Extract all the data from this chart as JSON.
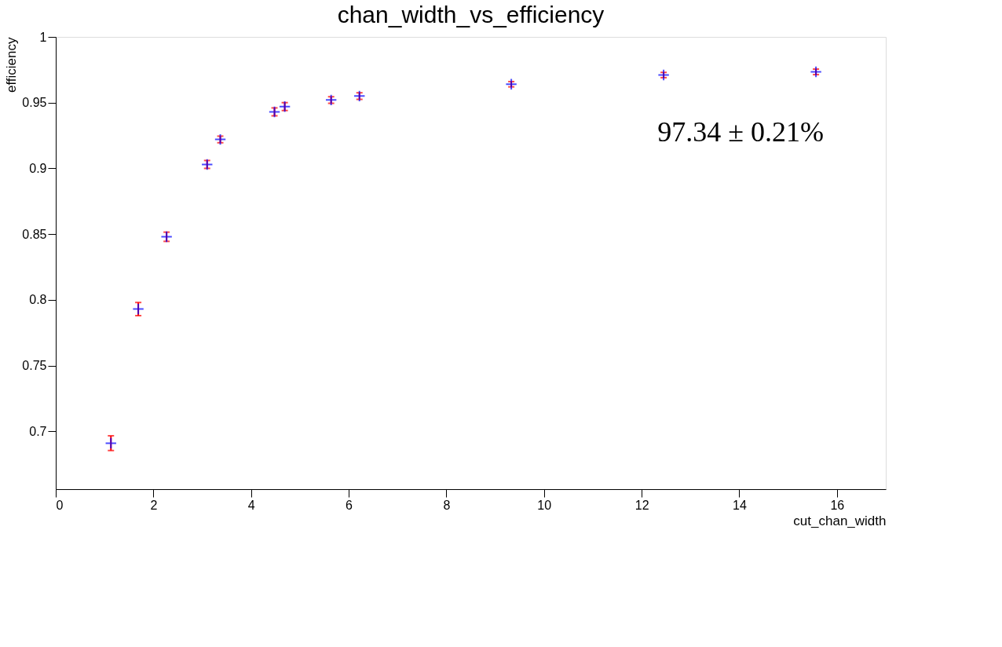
{
  "chart_data": {
    "type": "scatter",
    "title": "chan_width_vs_efficiency",
    "xlabel": "cut_chan_width",
    "ylabel": "efficiency",
    "xlim": [
      0,
      17
    ],
    "xticks": [
      0,
      2,
      4,
      6,
      8,
      10,
      12,
      14,
      16
    ],
    "ylim": [
      0.656,
      1
    ],
    "yticks": [
      0.7,
      0.75,
      0.8,
      0.85,
      0.9,
      0.95,
      1
    ],
    "grid": false,
    "marker": "cross",
    "series": [
      {
        "color": "#0000ff",
        "x": [
          1.13,
          1.69,
          2.27,
          3.1,
          3.37,
          4.48,
          4.69,
          5.64,
          6.22,
          9.33,
          12.45,
          15.57
        ],
        "values": [
          0.691,
          0.793,
          0.848,
          0.903,
          0.922,
          0.943,
          0.947,
          0.952,
          0.955,
          0.964,
          0.971,
          0.9734
        ],
        "errors": [
          0.0056,
          0.005,
          0.0035,
          0.003,
          0.0025,
          0.003,
          0.003,
          0.0025,
          0.0025,
          0.002,
          0.002,
          0.0021
        ]
      }
    ],
    "annotations": [
      {
        "text": "97.34 ± 0.21%",
        "x": 15.57,
        "y": 0.9734
      }
    ]
  }
}
